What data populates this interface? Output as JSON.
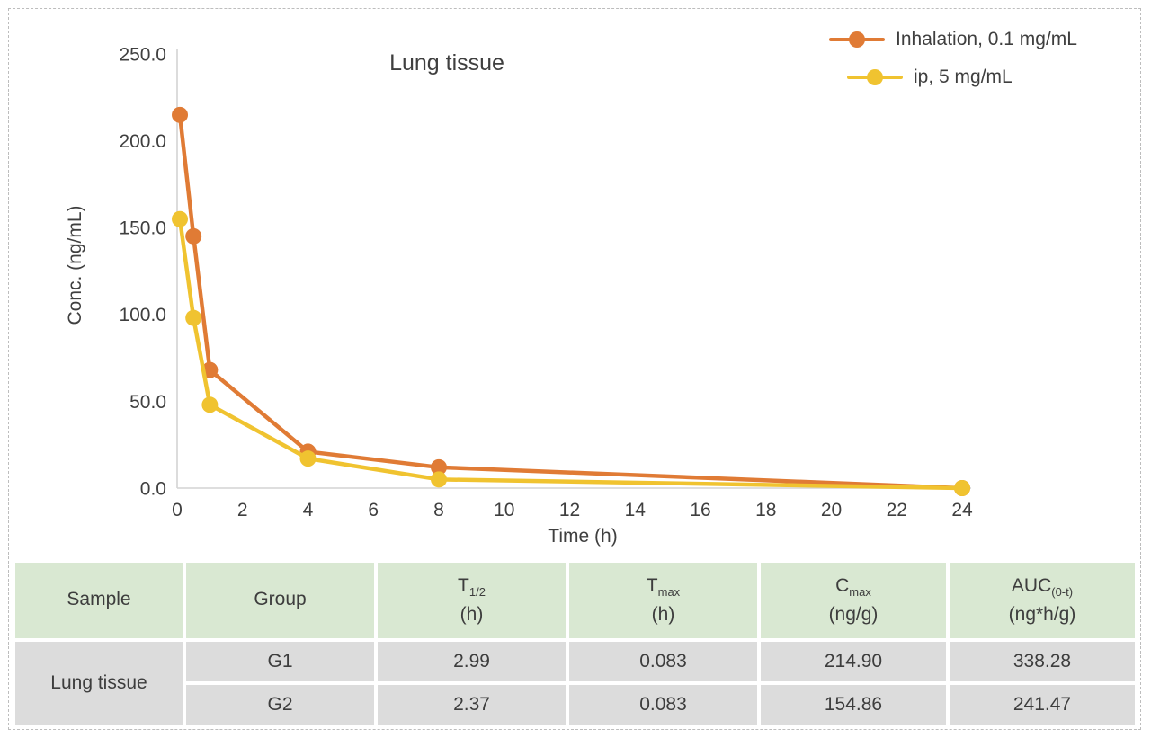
{
  "figure": {
    "border_color": "#bdbdbd",
    "background": "#ffffff",
    "text_color": "#3f3f3f",
    "axis_color": "#d4d4d4"
  },
  "chart_data": {
    "type": "line",
    "title": "Lung tissue",
    "xlabel": "Time (h)",
    "ylabel": "Conc. (ng/mL)",
    "x": [
      0.083,
      0.5,
      1,
      4,
      8,
      24
    ],
    "series": [
      {
        "name": "Inhalation, 0.1 mg/mL",
        "color": "#E07B35",
        "values": [
          214.9,
          145,
          68,
          21,
          12,
          0
        ]
      },
      {
        "name": "ip, 5 mg/mL",
        "color": "#F0C330",
        "values": [
          154.9,
          98,
          48,
          17,
          5,
          0
        ]
      }
    ],
    "xlim": [
      0,
      24
    ],
    "ylim": [
      0,
      250
    ],
    "xticks": [
      0,
      2,
      4,
      6,
      8,
      10,
      12,
      14,
      16,
      18,
      20,
      22,
      24
    ],
    "yticks": [
      0,
      50,
      100,
      150,
      200,
      250
    ],
    "ytick_labels": [
      "0.0",
      "50.0",
      "100.0",
      "150.0",
      "200.0",
      "250.0"
    ],
    "grid": false,
    "legend_position": "top-right",
    "marker": "circle",
    "marker_radius": 9,
    "line_width": 4.5
  },
  "table": {
    "columns": [
      {
        "label": "Sample",
        "sub": "",
        "unit": ""
      },
      {
        "label": "Group",
        "sub": "",
        "unit": ""
      },
      {
        "label": "T",
        "sub": "1/2",
        "unit": "(h)"
      },
      {
        "label": "T",
        "sub": "max",
        "unit": "(h)"
      },
      {
        "label": "C",
        "sub": "max",
        "unit": "(ng/g)"
      },
      {
        "label": "AUC",
        "sub": "(0-t)",
        "unit": "(ng*h/g)"
      }
    ],
    "sample_label": "Lung tissue",
    "rows": [
      {
        "group": "G1",
        "t_half": "2.99",
        "t_max": "0.083",
        "c_max": "214.90",
        "auc": "338.28"
      },
      {
        "group": "G2",
        "t_half": "2.37",
        "t_max": "0.083",
        "c_max": "154.86",
        "auc": "241.47"
      }
    ]
  }
}
